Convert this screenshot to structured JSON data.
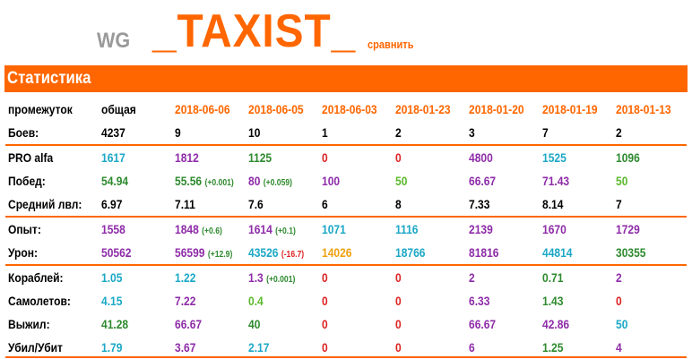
{
  "header": {
    "brand": "WG",
    "nickname": "_TAXIST_",
    "compare_link": "сравнить"
  },
  "section_title": "Статистика",
  "colors": {
    "accent": "#ff6600"
  },
  "columns": [
    {
      "label": "промежуток",
      "color": "c-black"
    },
    {
      "label": "общая",
      "color": "c-black"
    },
    {
      "label": "2018-06-06",
      "color": "c-orange"
    },
    {
      "label": "2018-06-05",
      "color": "c-orange"
    },
    {
      "label": "2018-06-03",
      "color": "c-orange"
    },
    {
      "label": "2018-01-23",
      "color": "c-orange"
    },
    {
      "label": "2018-01-20",
      "color": "c-orange"
    },
    {
      "label": "2018-01-19",
      "color": "c-orange"
    },
    {
      "label": "2018-01-13",
      "color": "c-orange"
    }
  ],
  "rows": [
    {
      "label": "Боев:",
      "group": false,
      "cells": [
        {
          "v": "4237",
          "c": "c-black"
        },
        {
          "v": "9",
          "c": "c-black"
        },
        {
          "v": "10",
          "c": "c-black"
        },
        {
          "v": "1",
          "c": "c-black"
        },
        {
          "v": "2",
          "c": "c-black"
        },
        {
          "v": "3",
          "c": "c-black"
        },
        {
          "v": "7",
          "c": "c-black"
        },
        {
          "v": "2",
          "c": "c-black"
        }
      ]
    },
    {
      "label": "PRO alfa",
      "group": true,
      "cells": [
        {
          "v": "1617",
          "c": "c-teal"
        },
        {
          "v": "1812",
          "c": "c-purple"
        },
        {
          "v": "1125",
          "c": "c-green"
        },
        {
          "v": "0",
          "c": "c-red"
        },
        {
          "v": "0",
          "c": "c-red"
        },
        {
          "v": "4800",
          "c": "c-purple"
        },
        {
          "v": "1525",
          "c": "c-teal"
        },
        {
          "v": "1096",
          "c": "c-green"
        }
      ]
    },
    {
      "label": "Побед:",
      "group": false,
      "cells": [
        {
          "v": "54.94",
          "c": "c-green"
        },
        {
          "v": "55.56",
          "c": "c-green",
          "d": "(+0.001)",
          "dc": "c-green"
        },
        {
          "v": "80",
          "c": "c-purple",
          "d": "(+0.059)",
          "dc": "c-green"
        },
        {
          "v": "100",
          "c": "c-purple"
        },
        {
          "v": "50",
          "c": "c-lgreen"
        },
        {
          "v": "66.67",
          "c": "c-purple"
        },
        {
          "v": "71.43",
          "c": "c-purple"
        },
        {
          "v": "50",
          "c": "c-lgreen"
        }
      ]
    },
    {
      "label": "Средний лвл:",
      "group": false,
      "cells": [
        {
          "v": "6.97",
          "c": "c-black"
        },
        {
          "v": "7.11",
          "c": "c-black"
        },
        {
          "v": "7.6",
          "c": "c-black"
        },
        {
          "v": "6",
          "c": "c-black"
        },
        {
          "v": "8",
          "c": "c-black"
        },
        {
          "v": "7.33",
          "c": "c-black"
        },
        {
          "v": "8.14",
          "c": "c-black"
        },
        {
          "v": "7",
          "c": "c-black"
        }
      ]
    },
    {
      "label": "Опыт:",
      "group": true,
      "cells": [
        {
          "v": "1558",
          "c": "c-purple"
        },
        {
          "v": "1848",
          "c": "c-purple",
          "d": "(+0.6)",
          "dc": "c-green"
        },
        {
          "v": "1614",
          "c": "c-purple",
          "d": "(+0.1)",
          "dc": "c-green"
        },
        {
          "v": "1071",
          "c": "c-teal"
        },
        {
          "v": "1116",
          "c": "c-teal"
        },
        {
          "v": "2139",
          "c": "c-purple"
        },
        {
          "v": "1670",
          "c": "c-purple"
        },
        {
          "v": "1729",
          "c": "c-purple"
        }
      ]
    },
    {
      "label": "Урон:",
      "group": false,
      "cells": [
        {
          "v": "50562",
          "c": "c-purple"
        },
        {
          "v": "56599",
          "c": "c-purple",
          "d": "(+12.9)",
          "dc": "c-green"
        },
        {
          "v": "43526",
          "c": "c-teal",
          "d": "(-16.7)",
          "dc": "c-red"
        },
        {
          "v": "14026",
          "c": "c-gold"
        },
        {
          "v": "18766",
          "c": "c-teal"
        },
        {
          "v": "81816",
          "c": "c-purple"
        },
        {
          "v": "44814",
          "c": "c-teal"
        },
        {
          "v": "30355",
          "c": "c-green"
        }
      ]
    },
    {
      "label": "Кораблей:",
      "group": true,
      "cells": [
        {
          "v": "1.05",
          "c": "c-teal"
        },
        {
          "v": "1.22",
          "c": "c-teal"
        },
        {
          "v": "1.3",
          "c": "c-purple",
          "d": "(+0.001)",
          "dc": "c-green"
        },
        {
          "v": "0",
          "c": "c-red"
        },
        {
          "v": "0",
          "c": "c-red"
        },
        {
          "v": "2",
          "c": "c-purple"
        },
        {
          "v": "0.71",
          "c": "c-green"
        },
        {
          "v": "2",
          "c": "c-purple"
        }
      ]
    },
    {
      "label": "Самолетов:",
      "group": false,
      "cells": [
        {
          "v": "4.15",
          "c": "c-teal"
        },
        {
          "v": "7.22",
          "c": "c-purple"
        },
        {
          "v": "0.4",
          "c": "c-lgreen"
        },
        {
          "v": "0",
          "c": "c-red"
        },
        {
          "v": "0",
          "c": "c-red"
        },
        {
          "v": "6.33",
          "c": "c-purple"
        },
        {
          "v": "1.43",
          "c": "c-green"
        },
        {
          "v": "0",
          "c": "c-red"
        }
      ]
    },
    {
      "label": "Выжил:",
      "group": false,
      "cells": [
        {
          "v": "41.28",
          "c": "c-green"
        },
        {
          "v": "66.67",
          "c": "c-purple"
        },
        {
          "v": "40",
          "c": "c-green"
        },
        {
          "v": "0",
          "c": "c-red"
        },
        {
          "v": "0",
          "c": "c-red"
        },
        {
          "v": "66.67",
          "c": "c-purple"
        },
        {
          "v": "42.86",
          "c": "c-purple"
        },
        {
          "v": "50",
          "c": "c-teal"
        }
      ]
    },
    {
      "label": "Убил/Убит",
      "group": false,
      "cells": [
        {
          "v": "1.79",
          "c": "c-teal"
        },
        {
          "v": "3.67",
          "c": "c-purple"
        },
        {
          "v": "2.17",
          "c": "c-teal"
        },
        {
          "v": "0",
          "c": "c-red"
        },
        {
          "v": "0",
          "c": "c-red"
        },
        {
          "v": "6",
          "c": "c-purple"
        },
        {
          "v": "1.25",
          "c": "c-green"
        },
        {
          "v": "4",
          "c": "c-purple"
        }
      ]
    }
  ]
}
